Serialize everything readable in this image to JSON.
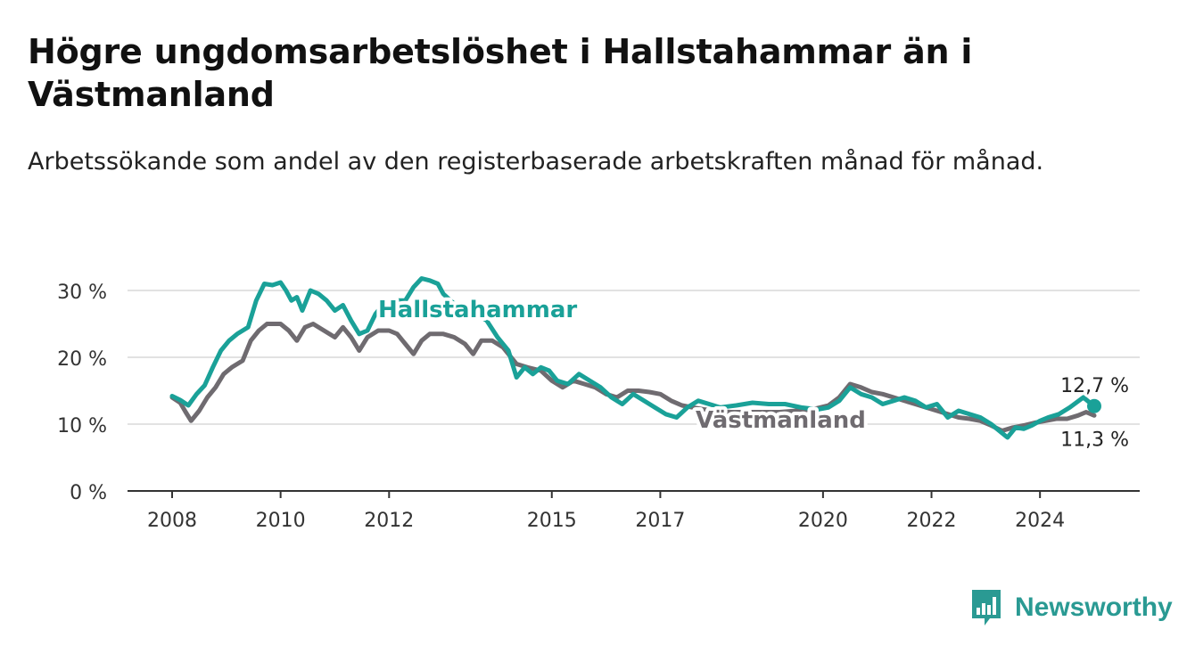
{
  "header": {
    "title": "Högre ungdomsarbetslöshet i Hallstahammar än i Västmanland",
    "subtitle": "Arbetssökande som andel av den registerbaserade arbetskraften månad för månad."
  },
  "brand": {
    "name": "Newsworthy",
    "icon": "bar-chart-logo-icon",
    "color": "#2a9a93"
  },
  "chart_data": {
    "type": "line",
    "title": "Högre ungdomsarbetslöshet i Hallstahammar än i Västmanland",
    "subtitle": "Arbetssökande som andel av den registerbaserade arbetskraften månad för månad.",
    "xlabel": "",
    "ylabel": "",
    "xlim": [
      2007.5,
      2025.8
    ],
    "ylim": [
      0,
      30
    ],
    "x_ticks": [
      2008,
      2010,
      2012,
      2015,
      2017,
      2020,
      2022,
      2024
    ],
    "x_tick_labels": [
      "2008",
      "2010",
      "2012",
      "2015",
      "2017",
      "2020",
      "2022",
      "2024"
    ],
    "y_ticks": [
      0,
      10,
      20,
      30
    ],
    "y_tick_labels": [
      "0 %",
      "10 %",
      "20 %",
      "30 %"
    ],
    "grid": "horizontal",
    "legend": "direct-labels",
    "series": [
      {
        "name": "Hallstahammar",
        "color": "#1aa198",
        "end_label": "12,7 %",
        "points": [
          [
            2008.0,
            14.2
          ],
          [
            2008.15,
            13.6
          ],
          [
            2008.3,
            12.8
          ],
          [
            2008.45,
            14.5
          ],
          [
            2008.6,
            15.8
          ],
          [
            2008.75,
            18.5
          ],
          [
            2008.9,
            21.0
          ],
          [
            2009.05,
            22.5
          ],
          [
            2009.2,
            23.5
          ],
          [
            2009.4,
            24.5
          ],
          [
            2009.55,
            28.5
          ],
          [
            2009.7,
            31.0
          ],
          [
            2009.85,
            30.8
          ],
          [
            2010.0,
            31.2
          ],
          [
            2010.1,
            30.0
          ],
          [
            2010.2,
            28.5
          ],
          [
            2010.3,
            29.0
          ],
          [
            2010.4,
            27.0
          ],
          [
            2010.55,
            30.0
          ],
          [
            2010.7,
            29.5
          ],
          [
            2010.85,
            28.5
          ],
          [
            2011.0,
            27.0
          ],
          [
            2011.15,
            27.8
          ],
          [
            2011.3,
            25.5
          ],
          [
            2011.45,
            23.5
          ],
          [
            2011.6,
            24.0
          ],
          [
            2011.75,
            26.5
          ],
          [
            2011.9,
            28.0
          ],
          [
            2012.1,
            28.5
          ],
          [
            2012.3,
            28.5
          ],
          [
            2012.45,
            30.5
          ],
          [
            2012.6,
            31.8
          ],
          [
            2012.75,
            31.5
          ],
          [
            2012.9,
            31.0
          ],
          [
            2013.0,
            29.5
          ],
          [
            2013.2,
            28.0
          ],
          [
            2013.4,
            27.0
          ],
          [
            2013.6,
            26.5
          ],
          [
            2013.8,
            25.5
          ],
          [
            2014.0,
            23.0
          ],
          [
            2014.2,
            21.0
          ],
          [
            2014.35,
            17.0
          ],
          [
            2014.5,
            18.5
          ],
          [
            2014.65,
            17.5
          ],
          [
            2014.8,
            18.5
          ],
          [
            2014.95,
            18.0
          ],
          [
            2015.1,
            16.5
          ],
          [
            2015.3,
            16.0
          ],
          [
            2015.5,
            17.5
          ],
          [
            2015.7,
            16.5
          ],
          [
            2015.9,
            15.5
          ],
          [
            2016.1,
            14.0
          ],
          [
            2016.3,
            13.0
          ],
          [
            2016.5,
            14.5
          ],
          [
            2016.7,
            13.5
          ],
          [
            2016.9,
            12.5
          ],
          [
            2017.1,
            11.5
          ],
          [
            2017.3,
            11.0
          ],
          [
            2017.5,
            12.5
          ],
          [
            2017.7,
            13.5
          ],
          [
            2017.9,
            13.0
          ],
          [
            2018.1,
            12.5
          ],
          [
            2018.4,
            12.8
          ],
          [
            2018.7,
            13.2
          ],
          [
            2019.0,
            13.0
          ],
          [
            2019.3,
            13.0
          ],
          [
            2019.6,
            12.5
          ],
          [
            2019.9,
            12.2
          ],
          [
            2020.1,
            12.5
          ],
          [
            2020.3,
            13.5
          ],
          [
            2020.5,
            15.5
          ],
          [
            2020.7,
            14.5
          ],
          [
            2020.9,
            14.0
          ],
          [
            2021.1,
            13.0
          ],
          [
            2021.3,
            13.5
          ],
          [
            2021.5,
            14.0
          ],
          [
            2021.7,
            13.5
          ],
          [
            2021.9,
            12.5
          ],
          [
            2022.1,
            13.0
          ],
          [
            2022.3,
            11.0
          ],
          [
            2022.5,
            12.0
          ],
          [
            2022.7,
            11.5
          ],
          [
            2022.9,
            11.0
          ],
          [
            2023.1,
            10.0
          ],
          [
            2023.25,
            9.0
          ],
          [
            2023.4,
            8.0
          ],
          [
            2023.55,
            9.5
          ],
          [
            2023.7,
            9.3
          ],
          [
            2023.85,
            9.8
          ],
          [
            2024.0,
            10.5
          ],
          [
            2024.15,
            11.0
          ],
          [
            2024.35,
            11.5
          ],
          [
            2024.55,
            12.5
          ],
          [
            2024.8,
            14.0
          ],
          [
            2024.95,
            13.0
          ],
          [
            2025.0,
            12.7
          ]
        ]
      },
      {
        "name": "Västmanland",
        "color": "#6f6b70",
        "end_label": "11,3 %",
        "points": [
          [
            2008.0,
            14.0
          ],
          [
            2008.15,
            13.2
          ],
          [
            2008.25,
            11.8
          ],
          [
            2008.35,
            10.5
          ],
          [
            2008.5,
            12.0
          ],
          [
            2008.65,
            14.0
          ],
          [
            2008.8,
            15.5
          ],
          [
            2008.95,
            17.5
          ],
          [
            2009.1,
            18.5
          ],
          [
            2009.3,
            19.5
          ],
          [
            2009.45,
            22.5
          ],
          [
            2009.6,
            24.0
          ],
          [
            2009.75,
            25.0
          ],
          [
            2010.0,
            25.0
          ],
          [
            2010.15,
            24.0
          ],
          [
            2010.3,
            22.5
          ],
          [
            2010.45,
            24.5
          ],
          [
            2010.6,
            25.0
          ],
          [
            2010.8,
            24.0
          ],
          [
            2011.0,
            23.0
          ],
          [
            2011.15,
            24.5
          ],
          [
            2011.3,
            23.0
          ],
          [
            2011.45,
            21.0
          ],
          [
            2011.6,
            23.0
          ],
          [
            2011.8,
            24.0
          ],
          [
            2012.0,
            24.0
          ],
          [
            2012.15,
            23.5
          ],
          [
            2012.3,
            22.0
          ],
          [
            2012.45,
            20.5
          ],
          [
            2012.6,
            22.5
          ],
          [
            2012.75,
            23.5
          ],
          [
            2013.0,
            23.5
          ],
          [
            2013.2,
            23.0
          ],
          [
            2013.4,
            22.0
          ],
          [
            2013.55,
            20.5
          ],
          [
            2013.7,
            22.5
          ],
          [
            2013.9,
            22.5
          ],
          [
            2014.1,
            21.5
          ],
          [
            2014.35,
            19.0
          ],
          [
            2014.55,
            18.5
          ],
          [
            2014.8,
            18.0
          ],
          [
            2015.0,
            16.5
          ],
          [
            2015.2,
            15.5
          ],
          [
            2015.4,
            16.5
          ],
          [
            2015.6,
            16.0
          ],
          [
            2015.8,
            15.5
          ],
          [
            2016.0,
            14.5
          ],
          [
            2016.2,
            14.0
          ],
          [
            2016.4,
            15.0
          ],
          [
            2016.6,
            15.0
          ],
          [
            2016.8,
            14.8
          ],
          [
            2017.0,
            14.5
          ],
          [
            2017.2,
            13.5
          ],
          [
            2017.4,
            12.8
          ],
          [
            2017.6,
            12.5
          ],
          [
            2017.8,
            12.2
          ],
          [
            2018.0,
            12.0
          ],
          [
            2018.3,
            11.8
          ],
          [
            2018.6,
            11.8
          ],
          [
            2018.9,
            11.8
          ],
          [
            2019.2,
            11.8
          ],
          [
            2019.5,
            12.0
          ],
          [
            2019.8,
            12.2
          ],
          [
            2020.1,
            12.8
          ],
          [
            2020.3,
            14.0
          ],
          [
            2020.5,
            16.0
          ],
          [
            2020.7,
            15.5
          ],
          [
            2020.9,
            14.8
          ],
          [
            2021.1,
            14.5
          ],
          [
            2021.3,
            14.0
          ],
          [
            2021.5,
            13.5
          ],
          [
            2021.7,
            13.0
          ],
          [
            2021.9,
            12.5
          ],
          [
            2022.1,
            12.0
          ],
          [
            2022.3,
            11.5
          ],
          [
            2022.5,
            11.0
          ],
          [
            2022.7,
            10.8
          ],
          [
            2022.9,
            10.5
          ],
          [
            2023.1,
            9.8
          ],
          [
            2023.3,
            9.0
          ],
          [
            2023.5,
            9.5
          ],
          [
            2023.7,
            9.8
          ],
          [
            2023.9,
            10.2
          ],
          [
            2024.1,
            10.5
          ],
          [
            2024.3,
            10.8
          ],
          [
            2024.5,
            10.8
          ],
          [
            2024.7,
            11.3
          ],
          [
            2024.85,
            11.8
          ],
          [
            2025.0,
            11.3
          ]
        ]
      }
    ]
  }
}
